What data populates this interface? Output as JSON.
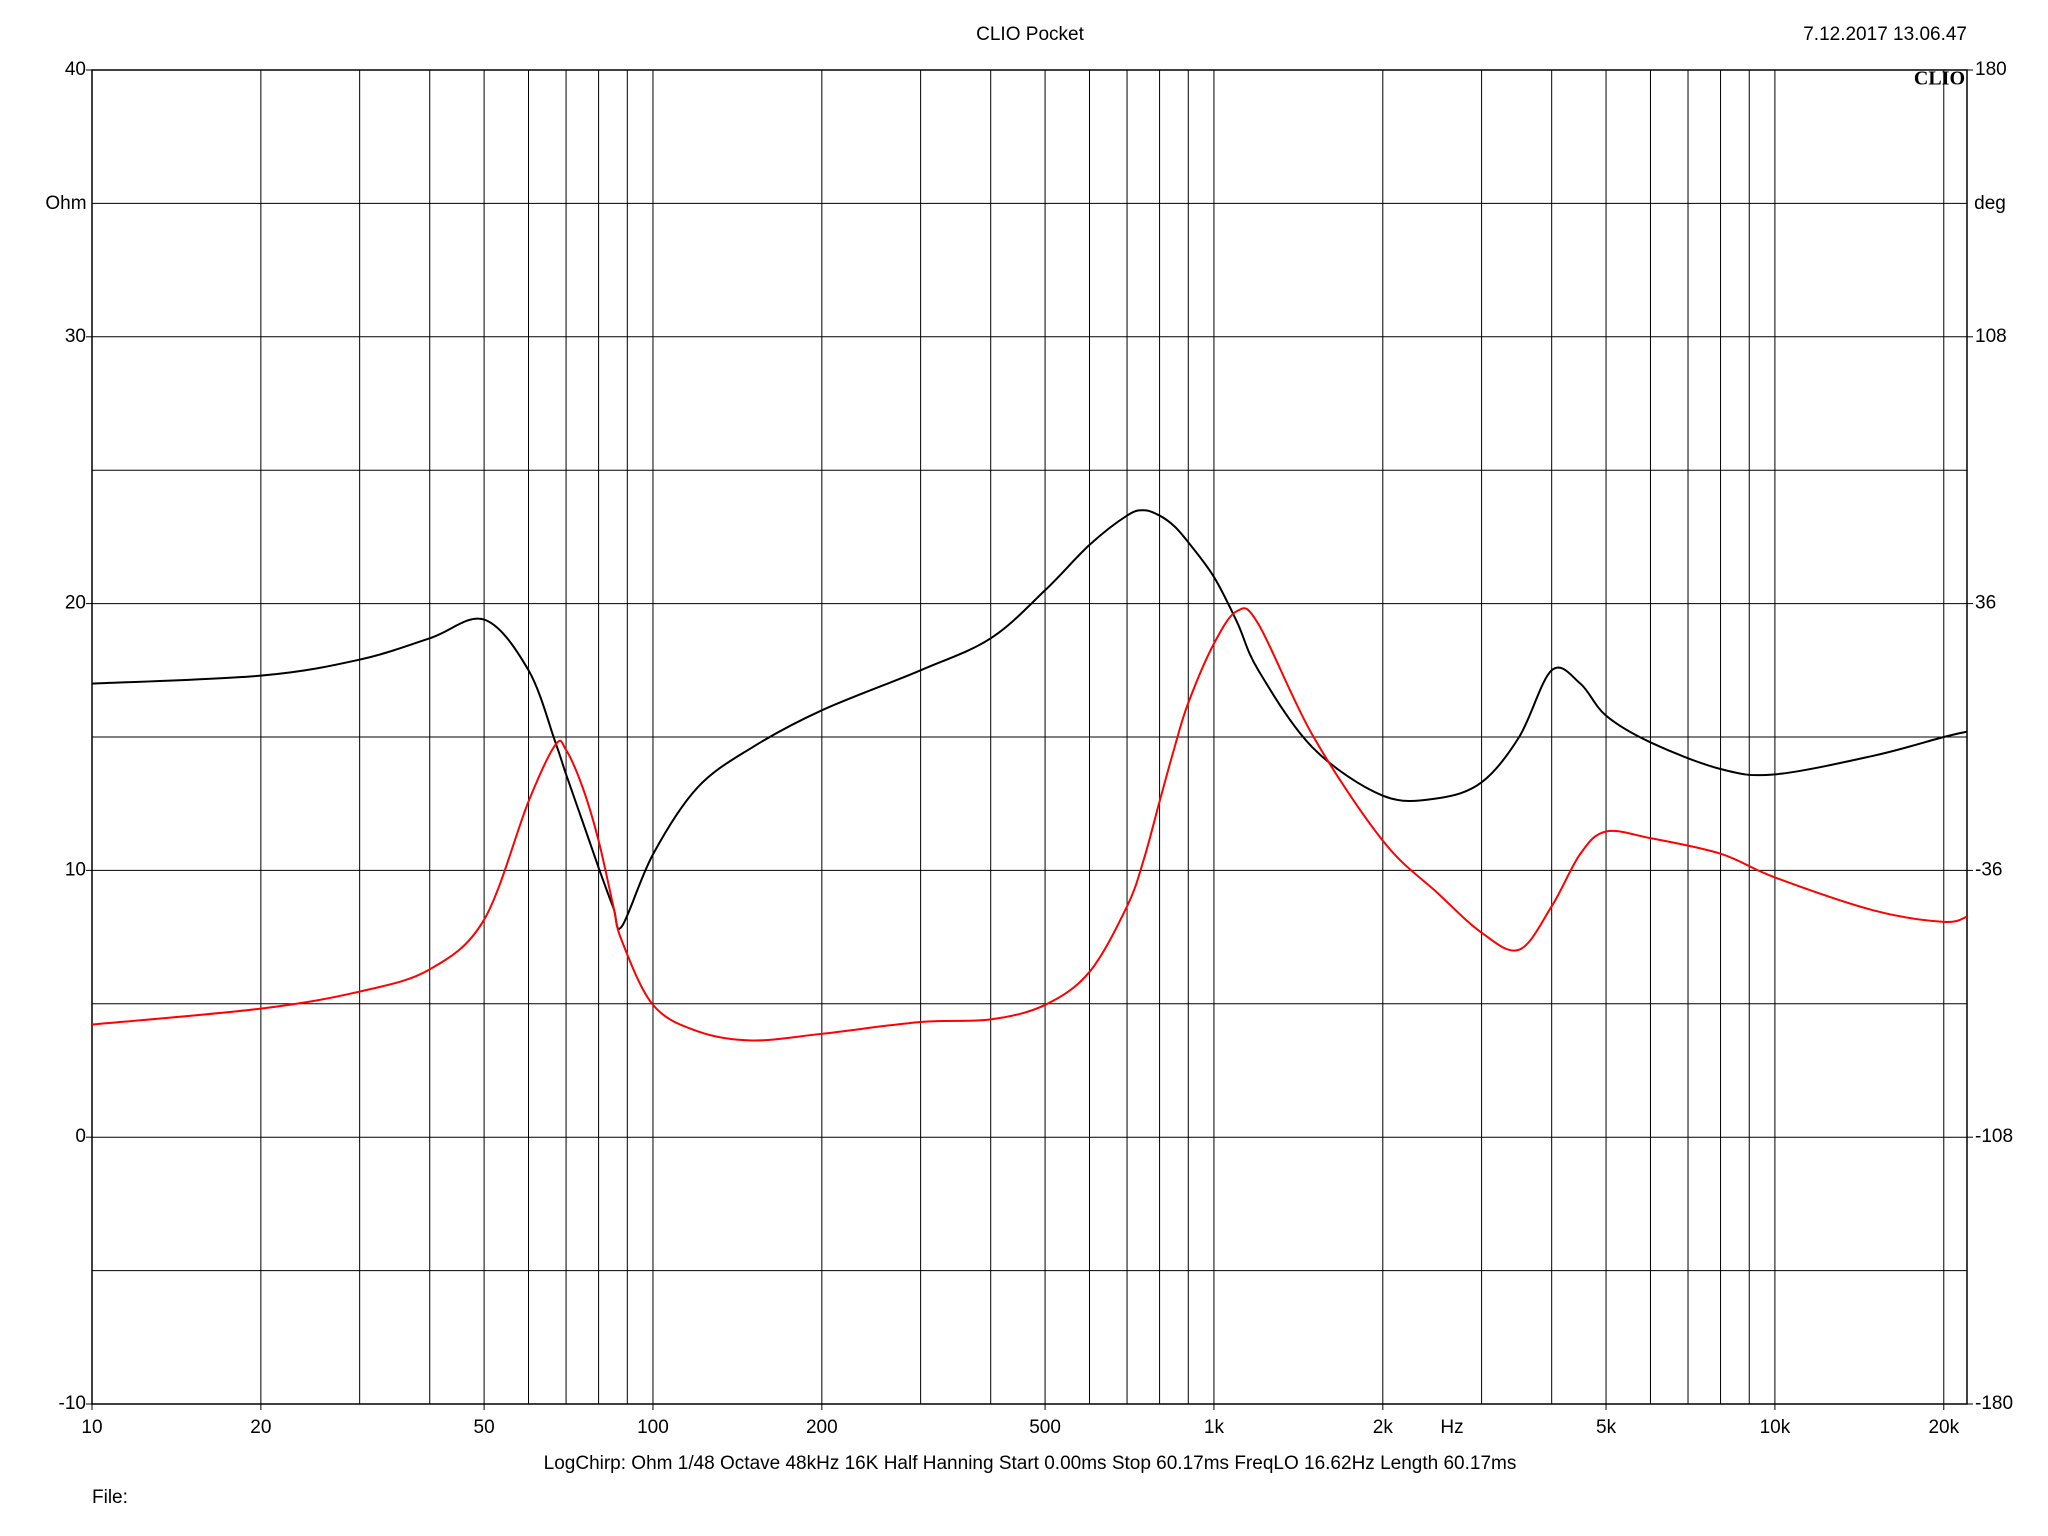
{
  "chart_data": {
    "type": "line",
    "title": "CLIO Pocket",
    "timestamp": "7.12.2017 13.06.47",
    "logo": "CLIO",
    "y_unit": "Ohm",
    "y2_unit": "deg",
    "x_unit": "Hz",
    "footer": "LogChirp:  Ohm   1/48 Octave   48kHz   16K   Half Hanning   Start 0.00ms    Stop 60.17ms    FreqLO 16.62Hz    Length 60.17ms",
    "file_label": "File:",
    "log_x": true,
    "xlim": [
      10,
      22000
    ],
    "xticks": [
      10,
      20,
      50,
      100,
      200,
      500,
      {
        "value": 1000,
        "label": "1k"
      },
      {
        "value": 2000,
        "label": "2k"
      },
      {
        "value": 5000,
        "label": "5k"
      },
      {
        "value": 10000,
        "label": "10k"
      },
      {
        "value": 20000,
        "label": "20k"
      }
    ],
    "xgrid": [
      10,
      20,
      30,
      40,
      50,
      60,
      70,
      80,
      90,
      100,
      200,
      300,
      400,
      500,
      600,
      700,
      800,
      900,
      1000,
      2000,
      3000,
      4000,
      5000,
      6000,
      7000,
      8000,
      9000,
      10000,
      20000
    ],
    "ylim": [
      -10,
      40
    ],
    "yticks": [
      -10,
      0,
      10,
      20,
      30,
      40
    ],
    "ygrid": [
      -10,
      -5,
      0,
      5,
      10,
      15,
      20,
      25,
      30,
      35,
      40
    ],
    "y2lim": [
      -180,
      180
    ],
    "y2ticks": [
      -180,
      -108,
      -36,
      36,
      108,
      180
    ],
    "x": [
      10,
      20,
      30,
      40,
      50,
      60,
      67,
      70,
      75,
      80,
      85,
      88,
      100,
      120,
      150,
      200,
      300,
      400,
      500,
      600,
      700,
      750,
      800,
      850,
      900,
      1000,
      1100,
      1200,
      1500,
      2000,
      2500,
      3000,
      3500,
      4000,
      4500,
      5000,
      6000,
      8000,
      10000,
      15000,
      20000,
      22000
    ],
    "series": [
      {
        "color": "#000000",
        "values": [
          17.0,
          17.3,
          17.9,
          18.7,
          19.4,
          17.5,
          14.8,
          13.6,
          11.8,
          10.1,
          8.6,
          7.9,
          10.6,
          13.1,
          14.6,
          16.0,
          17.5,
          18.7,
          20.5,
          22.2,
          23.3,
          23.5,
          23.3,
          22.9,
          22.3,
          21.0,
          19.3,
          17.5,
          14.6,
          12.8,
          12.7,
          13.3,
          15.0,
          17.5,
          17.0,
          15.8,
          14.8,
          13.8,
          13.6,
          14.3,
          15.0,
          15.2
        ]
      },
      {
        "color": "#ff0000",
        "axis": "y2",
        "values": [
          -77.6,
          -73.3,
          -68.7,
          -62.7,
          -49.3,
          -17.4,
          -2.1,
          -3.5,
          -13.8,
          -28,
          -45.7,
          -55,
          -72.3,
          -79.4,
          -81.9,
          -80.1,
          -76.9,
          -76.2,
          -72.3,
          -63.4,
          -45.7,
          -33,
          -17.4,
          -3,
          9.2,
          25.2,
          34.0,
          30.5,
          0.4,
          -28.0,
          -42,
          -52.8,
          -57.4,
          -45.7,
          -31.5,
          -25.5,
          -27.3,
          -31.5,
          -37.9,
          -46.8,
          -49.9,
          -48.5
        ]
      }
    ]
  }
}
